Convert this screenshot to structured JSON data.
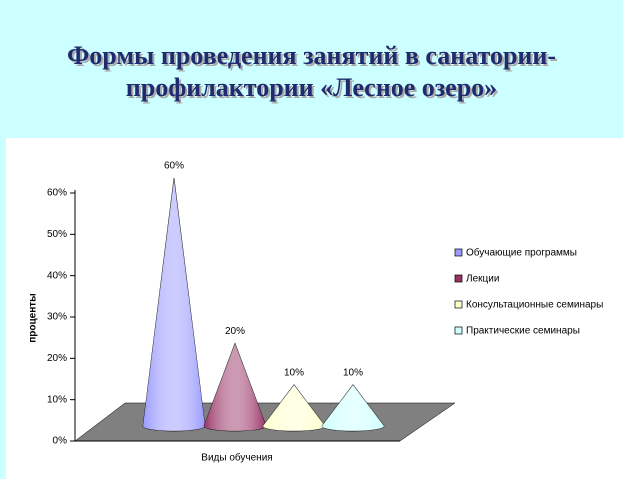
{
  "chart_data": {
    "type": "cone",
    "title": "Формы проведения занятий в санатории-профилактории «Лесное озеро»",
    "y_label": "проценты",
    "x_label": "Виды обучения",
    "categories": [
      null
    ],
    "series": [
      {
        "name": "Обучающие программы",
        "color": "#9999ff",
        "values": [
          60
        ],
        "value_labels": [
          "60%"
        ]
      },
      {
        "name": "Лекции",
        "color": "#993366",
        "values": [
          20
        ],
        "value_labels": [
          "20%"
        ]
      },
      {
        "name": "Консультационные семинары",
        "color": "#ffffcc",
        "values": [
          10
        ],
        "value_labels": [
          "10%"
        ]
      },
      {
        "name": "Практические семинары",
        "color": "#ccffff",
        "values": [
          10
        ],
        "value_labels": [
          "10%"
        ]
      }
    ],
    "ylim": [
      0,
      60
    ],
    "yticks": [
      {
        "value": 0,
        "label": "0%"
      },
      {
        "value": 10,
        "label": "10%"
      },
      {
        "value": 20,
        "label": "20%"
      },
      {
        "value": 30,
        "label": "30%"
      },
      {
        "value": 40,
        "label": "40%"
      },
      {
        "value": 50,
        "label": "50%"
      },
      {
        "value": 60,
        "label": "60%"
      }
    ],
    "legend": "right"
  }
}
